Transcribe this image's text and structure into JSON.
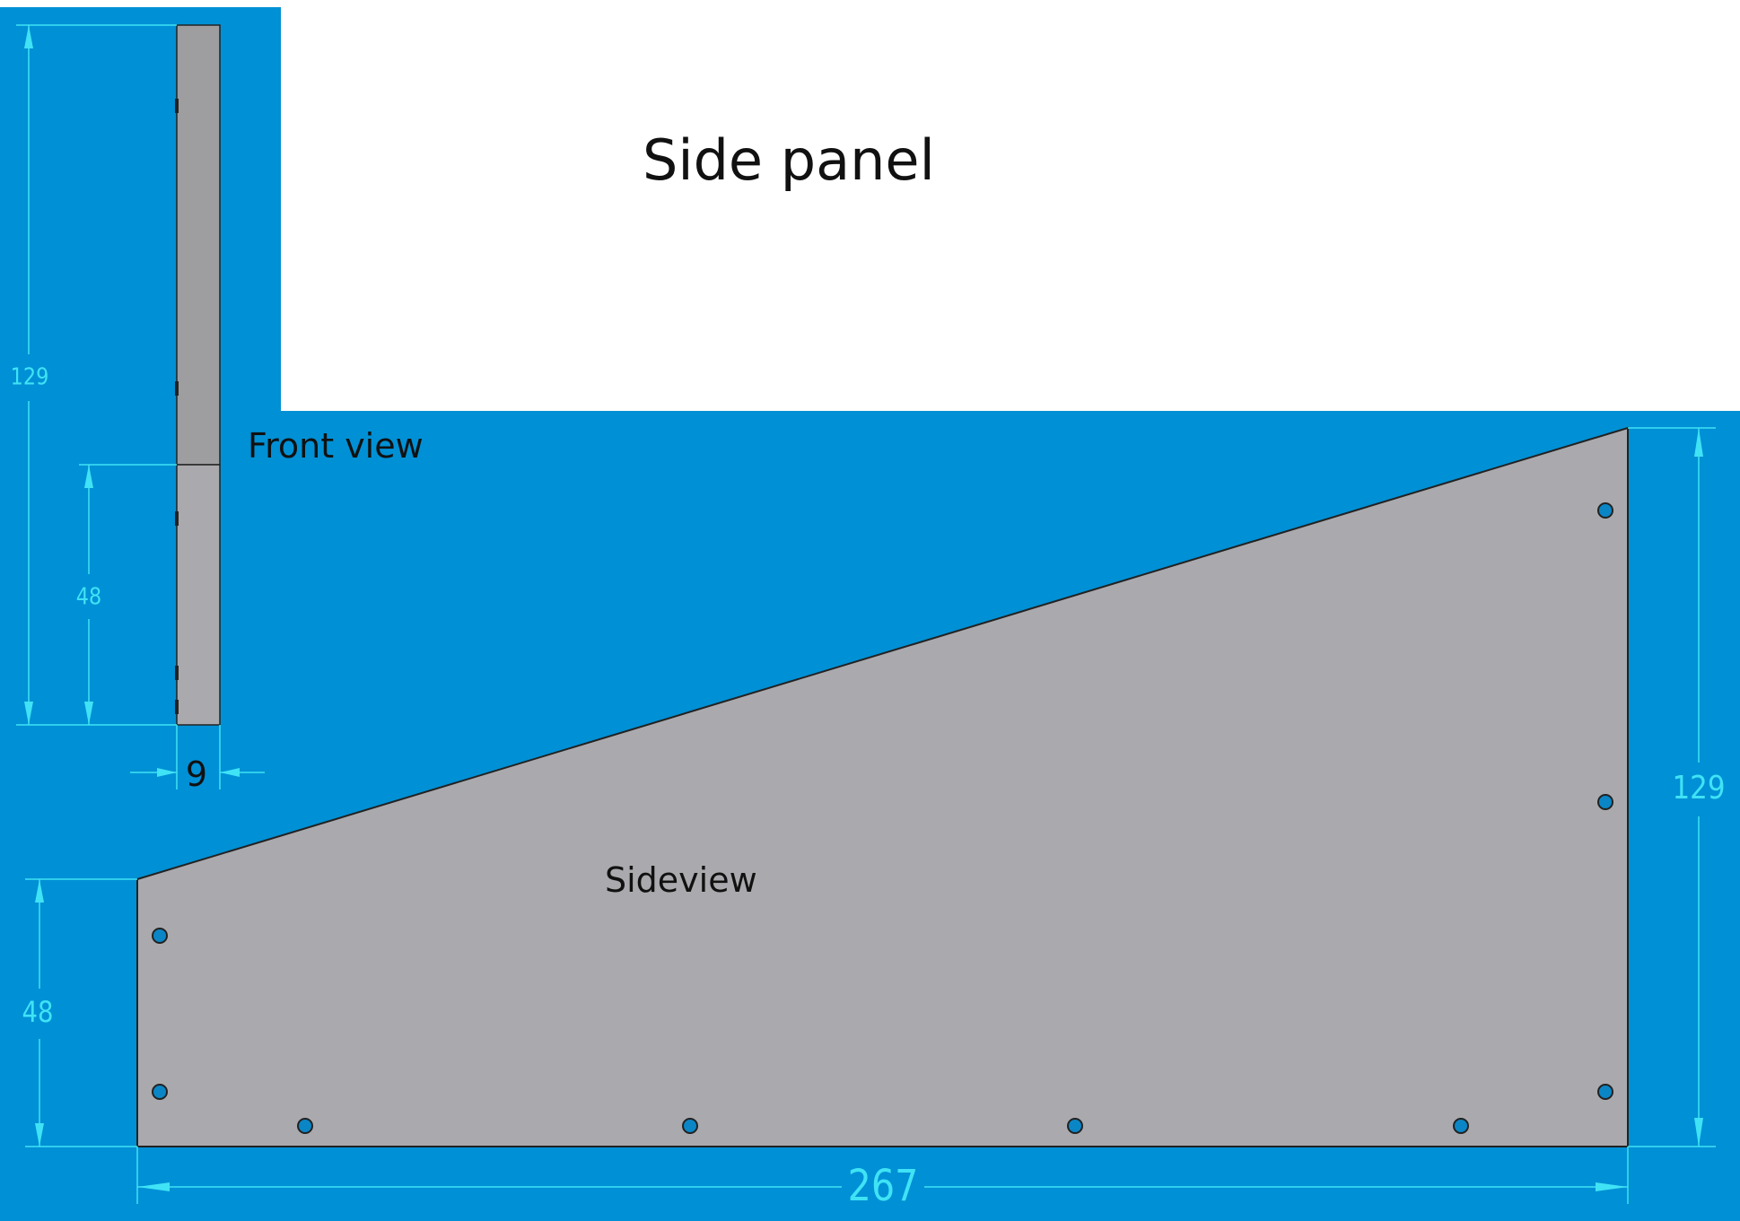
{
  "title": "Side panel",
  "front_view": {
    "label": "Front view",
    "dim_height_total": "129",
    "dim_height_lower": "48",
    "dim_thickness": "9"
  },
  "side_view": {
    "label": "Sideview",
    "dim_left_height": "48",
    "dim_right_height": "129",
    "dim_width": "267"
  },
  "colors": {
    "background_blue": "#0090D5",
    "panel_gray": "#AAAAAE",
    "front_upper_gray": "#9E9EA0",
    "dimension_cyan": "#3FE3F5",
    "hole_fill": "#0A86C6"
  }
}
